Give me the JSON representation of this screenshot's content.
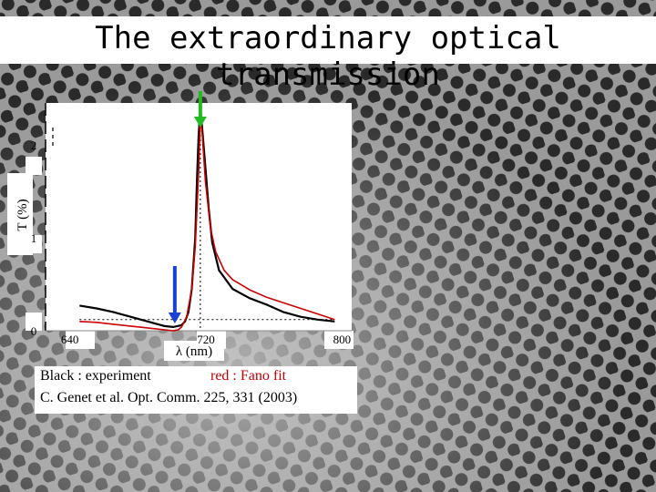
{
  "slide": {
    "title": "The extraordinary optical transmission"
  },
  "caption": {
    "experiment": "Black : experiment",
    "fit": "red : Fano fit",
    "reference": "C. Genet et al. Opt. Comm. 225, 331 (2003)"
  },
  "chart_data": {
    "type": "line",
    "xlabel": "λ (nm)",
    "ylabel": "T (%)",
    "xlim": [
      630,
      810
    ],
    "ylim": [
      0,
      2.45
    ],
    "xticks": [
      640,
      720,
      800
    ],
    "yticks": [
      0,
      1,
      2
    ],
    "series": [
      {
        "color": "#000000",
        "x": [
          650,
          660,
          670,
          680,
          690,
          700,
          705,
          710,
          712,
          714,
          716,
          718,
          719,
          720,
          721,
          722,
          724,
          726,
          728,
          732,
          740,
          750,
          760,
          770,
          780,
          790,
          800
        ],
        "y": [
          0.27,
          0.24,
          0.2,
          0.15,
          0.1,
          0.05,
          0.04,
          0.06,
          0.1,
          0.2,
          0.45,
          1.0,
          1.6,
          2.1,
          2.4,
          2.2,
          1.75,
          1.3,
          0.95,
          0.65,
          0.45,
          0.35,
          0.28,
          0.2,
          0.15,
          0.12,
          0.1
        ]
      },
      {
        "color": "#cc0000",
        "x": [
          650,
          660,
          670,
          680,
          690,
          700,
          705,
          708,
          710,
          713,
          716,
          718,
          720,
          721,
          722,
          724,
          727,
          730,
          735,
          740,
          750,
          760,
          770,
          780,
          790,
          800
        ],
        "y": [
          0.1,
          0.09,
          0.07,
          0.05,
          0.03,
          0.01,
          0.0,
          0.01,
          0.04,
          0.15,
          0.45,
          0.9,
          1.7,
          2.3,
          2.15,
          1.6,
          1.1,
          0.85,
          0.65,
          0.55,
          0.44,
          0.36,
          0.3,
          0.24,
          0.18,
          0.12
        ]
      }
    ],
    "annotations": [
      {
        "type": "arrow",
        "color": "green",
        "x": 721,
        "direction": "down",
        "label": ""
      },
      {
        "type": "arrow",
        "color": "blue",
        "x": 706,
        "direction": "down",
        "label": ""
      }
    ],
    "reference_lines": {
      "vertical_x": 721,
      "horizontal_y": 0.12
    }
  }
}
